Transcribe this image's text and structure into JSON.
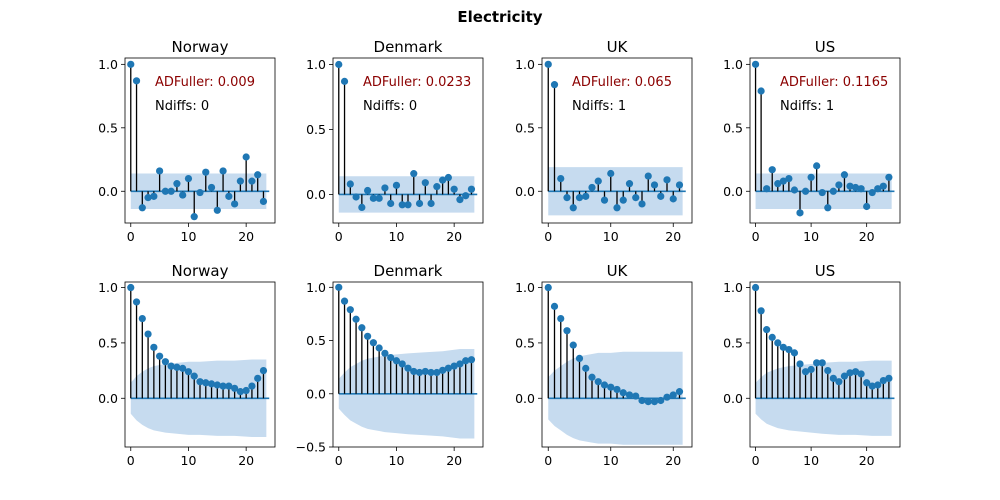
{
  "figure": {
    "title": "Electricity"
  },
  "colors": {
    "marker": "#1f77b4",
    "stem": "#000000",
    "baseline": "#1f77b4",
    "confidence_band": "#c6dbef",
    "adfuller_text": "#8b0000",
    "ndiffs_text": "#000000"
  },
  "chart_data": [
    {
      "type": "stem",
      "kind": "pacf",
      "title": "Norway",
      "adfuller_label": "ADFuller: 0.009",
      "ndiffs_label": "Ndiffs: 0",
      "xlim": [
        -1,
        25
      ],
      "ylim": [
        -0.25,
        1.05
      ],
      "xticks": [
        0,
        10,
        20
      ],
      "yticks": [
        0.0,
        0.5,
        1.0
      ],
      "ytick_labels": [
        "0.0",
        "0.5",
        "1.0"
      ],
      "x": [
        0,
        1,
        2,
        3,
        4,
        5,
        6,
        7,
        8,
        9,
        10,
        11,
        12,
        13,
        14,
        15,
        16,
        17,
        18,
        19,
        20,
        21,
        22,
        23
      ],
      "values": [
        1.0,
        0.87,
        -0.13,
        -0.05,
        -0.04,
        0.16,
        0.0,
        0.0,
        0.06,
        -0.03,
        0.1,
        -0.2,
        -0.01,
        0.15,
        0.03,
        -0.15,
        0.16,
        -0.04,
        -0.1,
        0.08,
        0.27,
        0.08,
        0.13,
        -0.08
      ],
      "band": {
        "x": [
          0,
          23.5
        ],
        "upper": [
          0.14,
          0.14
        ],
        "lower": [
          -0.14,
          -0.14
        ]
      }
    },
    {
      "type": "stem",
      "kind": "pacf",
      "title": "Denmark",
      "adfuller_label": "ADFuller: 0.0233",
      "ndiffs_label": "Ndiffs: 0",
      "xlim": [
        -1,
        25
      ],
      "ylim": [
        -0.22,
        1.05
      ],
      "xticks": [
        0,
        10,
        20
      ],
      "yticks": [
        0.0,
        0.5,
        1.0
      ],
      "ytick_labels": [
        "0.0",
        "0.5",
        "1.0"
      ],
      "x": [
        0,
        1,
        2,
        3,
        4,
        5,
        6,
        7,
        8,
        9,
        10,
        11,
        12,
        13,
        14,
        15,
        16,
        17,
        18,
        19,
        20,
        21,
        22,
        23
      ],
      "values": [
        1.0,
        0.87,
        0.08,
        -0.02,
        -0.1,
        0.03,
        -0.03,
        -0.03,
        0.05,
        -0.07,
        0.07,
        -0.08,
        -0.08,
        0.16,
        -0.07,
        0.09,
        -0.07,
        0.06,
        0.11,
        0.13,
        0.04,
        -0.04,
        -0.01,
        0.04
      ],
      "band": {
        "x": [
          0,
          23.5
        ],
        "upper": [
          0.14,
          0.14
        ],
        "lower": [
          -0.14,
          -0.14
        ]
      }
    },
    {
      "type": "stem",
      "kind": "pacf",
      "title": "UK",
      "adfuller_label": "ADFuller: 0.065",
      "ndiffs_label": "Ndiffs: 1",
      "xlim": [
        -1,
        23
      ],
      "ylim": [
        -0.25,
        1.05
      ],
      "xticks": [
        0,
        10,
        20
      ],
      "yticks": [
        0.0,
        0.5,
        1.0
      ],
      "ytick_labels": [
        "0.0",
        "0.5",
        "1.0"
      ],
      "x": [
        0,
        1,
        2,
        3,
        4,
        5,
        6,
        7,
        8,
        9,
        10,
        11,
        12,
        13,
        14,
        15,
        16,
        17,
        18,
        19,
        20,
        21
      ],
      "values": [
        1.0,
        0.84,
        0.1,
        -0.05,
        -0.13,
        -0.05,
        -0.04,
        0.03,
        0.08,
        -0.07,
        0.14,
        -0.13,
        -0.07,
        0.06,
        -0.05,
        -0.1,
        0.12,
        0.05,
        -0.04,
        0.09,
        -0.06,
        0.05
      ],
      "band": {
        "x": [
          0,
          21.5
        ],
        "upper": [
          0.19,
          0.19
        ],
        "lower": [
          -0.19,
          -0.19
        ]
      }
    },
    {
      "type": "stem",
      "kind": "pacf",
      "title": "US",
      "adfuller_label": "ADFuller: 0.1165",
      "ndiffs_label": "Ndiffs: 1",
      "xlim": [
        -1,
        26
      ],
      "ylim": [
        -0.25,
        1.05
      ],
      "xticks": [
        0,
        10,
        20
      ],
      "yticks": [
        0.0,
        0.5,
        1.0
      ],
      "ytick_labels": [
        "0.0",
        "0.5",
        "1.0"
      ],
      "x": [
        0,
        1,
        2,
        3,
        4,
        5,
        6,
        7,
        8,
        9,
        10,
        11,
        12,
        13,
        14,
        15,
        16,
        17,
        18,
        19,
        20,
        21,
        22,
        23,
        24
      ],
      "values": [
        1.0,
        0.79,
        0.02,
        0.17,
        0.06,
        0.08,
        0.1,
        0.01,
        -0.17,
        0.0,
        0.11,
        0.2,
        -0.01,
        -0.13,
        0.0,
        0.05,
        0.13,
        0.04,
        0.03,
        0.02,
        -0.12,
        -0.01,
        0.02,
        0.04,
        0.11
      ],
      "band": {
        "x": [
          0,
          24.5
        ],
        "upper": [
          0.14,
          0.14
        ],
        "lower": [
          -0.14,
          -0.14
        ]
      }
    },
    {
      "type": "stem",
      "kind": "acf",
      "title": "Norway",
      "xlim": [
        -1,
        25
      ],
      "ylim": [
        -0.44,
        1.05
      ],
      "xticks": [
        0,
        10,
        20
      ],
      "yticks": [
        0.0,
        0.5,
        1.0
      ],
      "ytick_labels": [
        "0.0",
        "0.5",
        "1.0"
      ],
      "x": [
        0,
        1,
        2,
        3,
        4,
        5,
        6,
        7,
        8,
        9,
        10,
        11,
        12,
        13,
        14,
        15,
        16,
        17,
        18,
        19,
        20,
        21,
        22,
        23
      ],
      "values": [
        1.0,
        0.87,
        0.72,
        0.58,
        0.46,
        0.38,
        0.33,
        0.29,
        0.28,
        0.27,
        0.24,
        0.2,
        0.15,
        0.14,
        0.13,
        0.12,
        0.11,
        0.11,
        0.09,
        0.06,
        0.07,
        0.11,
        0.18,
        0.25
      ],
      "band": {
        "x": [
          0,
          1,
          2,
          3,
          4,
          5,
          6,
          8,
          10,
          12,
          15,
          18,
          21,
          23.5
        ],
        "upper": [
          0.14,
          0.2,
          0.24,
          0.27,
          0.29,
          0.3,
          0.31,
          0.32,
          0.33,
          0.33,
          0.34,
          0.34,
          0.35,
          0.35
        ],
        "lower": [
          -0.14,
          -0.2,
          -0.24,
          -0.27,
          -0.29,
          -0.3,
          -0.31,
          -0.32,
          -0.33,
          -0.33,
          -0.34,
          -0.34,
          -0.35,
          -0.35
        ]
      }
    },
    {
      "type": "stem",
      "kind": "acf",
      "title": "Denmark",
      "xlim": [
        -1,
        25
      ],
      "ylim": [
        -0.5,
        1.05
      ],
      "xticks": [
        0,
        10,
        20
      ],
      "yticks": [
        -0.5,
        0.0,
        0.5,
        1.0
      ],
      "ytick_labels": [
        "−0.5",
        "0.0",
        "0.5",
        "1.0"
      ],
      "x": [
        0,
        1,
        2,
        3,
        4,
        5,
        6,
        7,
        8,
        9,
        10,
        11,
        12,
        13,
        14,
        15,
        16,
        17,
        18,
        19,
        20,
        21,
        22,
        23
      ],
      "values": [
        1.0,
        0.87,
        0.79,
        0.7,
        0.62,
        0.54,
        0.48,
        0.43,
        0.38,
        0.34,
        0.31,
        0.28,
        0.24,
        0.21,
        0.2,
        0.21,
        0.2,
        0.2,
        0.22,
        0.24,
        0.26,
        0.28,
        0.31,
        0.32
      ],
      "band": {
        "x": [
          0,
          1,
          2,
          3,
          4,
          5,
          6,
          8,
          10,
          12,
          15,
          18,
          21,
          23.5
        ],
        "upper": [
          0.14,
          0.2,
          0.25,
          0.28,
          0.31,
          0.33,
          0.34,
          0.36,
          0.37,
          0.38,
          0.39,
          0.4,
          0.42,
          0.42
        ],
        "lower": [
          -0.14,
          -0.2,
          -0.25,
          -0.28,
          -0.31,
          -0.33,
          -0.34,
          -0.36,
          -0.37,
          -0.38,
          -0.39,
          -0.4,
          -0.42,
          -0.42
        ]
      }
    },
    {
      "type": "stem",
      "kind": "acf",
      "title": "UK",
      "xlim": [
        -1,
        23
      ],
      "ylim": [
        -0.44,
        1.05
      ],
      "xticks": [
        0,
        10,
        20
      ],
      "yticks": [
        0.0,
        0.5,
        1.0
      ],
      "ytick_labels": [
        "0.0",
        "0.5",
        "1.0"
      ],
      "x": [
        0,
        1,
        2,
        3,
        4,
        5,
        6,
        7,
        8,
        9,
        10,
        11,
        12,
        13,
        14,
        15,
        16,
        17,
        18,
        19,
        20,
        21
      ],
      "values": [
        1.0,
        0.83,
        0.72,
        0.61,
        0.48,
        0.36,
        0.27,
        0.19,
        0.15,
        0.12,
        0.1,
        0.08,
        0.05,
        0.03,
        0.02,
        -0.02,
        -0.03,
        -0.03,
        -0.02,
        0.01,
        0.03,
        0.06
      ],
      "band": {
        "x": [
          0,
          1,
          2,
          3,
          4,
          5,
          6,
          7,
          8,
          10,
          12,
          14,
          16,
          21.5
        ],
        "upper": [
          0.19,
          0.25,
          0.29,
          0.33,
          0.36,
          0.38,
          0.39,
          0.4,
          0.41,
          0.41,
          0.42,
          0.42,
          0.42,
          0.42
        ],
        "lower": [
          -0.19,
          -0.25,
          -0.29,
          -0.33,
          -0.36,
          -0.38,
          -0.39,
          -0.4,
          -0.41,
          -0.41,
          -0.42,
          -0.42,
          -0.42,
          -0.42
        ]
      }
    },
    {
      "type": "stem",
      "kind": "acf",
      "title": "US",
      "xlim": [
        -1,
        26
      ],
      "ylim": [
        -0.44,
        1.05
      ],
      "xticks": [
        0,
        10,
        20
      ],
      "yticks": [
        0.0,
        0.5,
        1.0
      ],
      "ytick_labels": [
        "0.0",
        "0.5",
        "1.0"
      ],
      "x": [
        0,
        1,
        2,
        3,
        4,
        5,
        6,
        7,
        8,
        9,
        10,
        11,
        12,
        13,
        14,
        15,
        16,
        17,
        18,
        19,
        20,
        21,
        22,
        23,
        24
      ],
      "values": [
        1.0,
        0.79,
        0.62,
        0.55,
        0.5,
        0.46,
        0.44,
        0.41,
        0.31,
        0.24,
        0.26,
        0.32,
        0.32,
        0.25,
        0.18,
        0.15,
        0.2,
        0.23,
        0.24,
        0.22,
        0.14,
        0.11,
        0.12,
        0.16,
        0.18
      ],
      "band": {
        "x": [
          0,
          1,
          2,
          3,
          4,
          5,
          6,
          8,
          10,
          12,
          15,
          18,
          21,
          24.5
        ],
        "upper": [
          0.14,
          0.19,
          0.23,
          0.25,
          0.27,
          0.28,
          0.29,
          0.3,
          0.31,
          0.32,
          0.33,
          0.33,
          0.34,
          0.34
        ],
        "lower": [
          -0.14,
          -0.19,
          -0.23,
          -0.25,
          -0.27,
          -0.28,
          -0.29,
          -0.3,
          -0.31,
          -0.32,
          -0.33,
          -0.33,
          -0.34,
          -0.34
        ]
      }
    }
  ]
}
